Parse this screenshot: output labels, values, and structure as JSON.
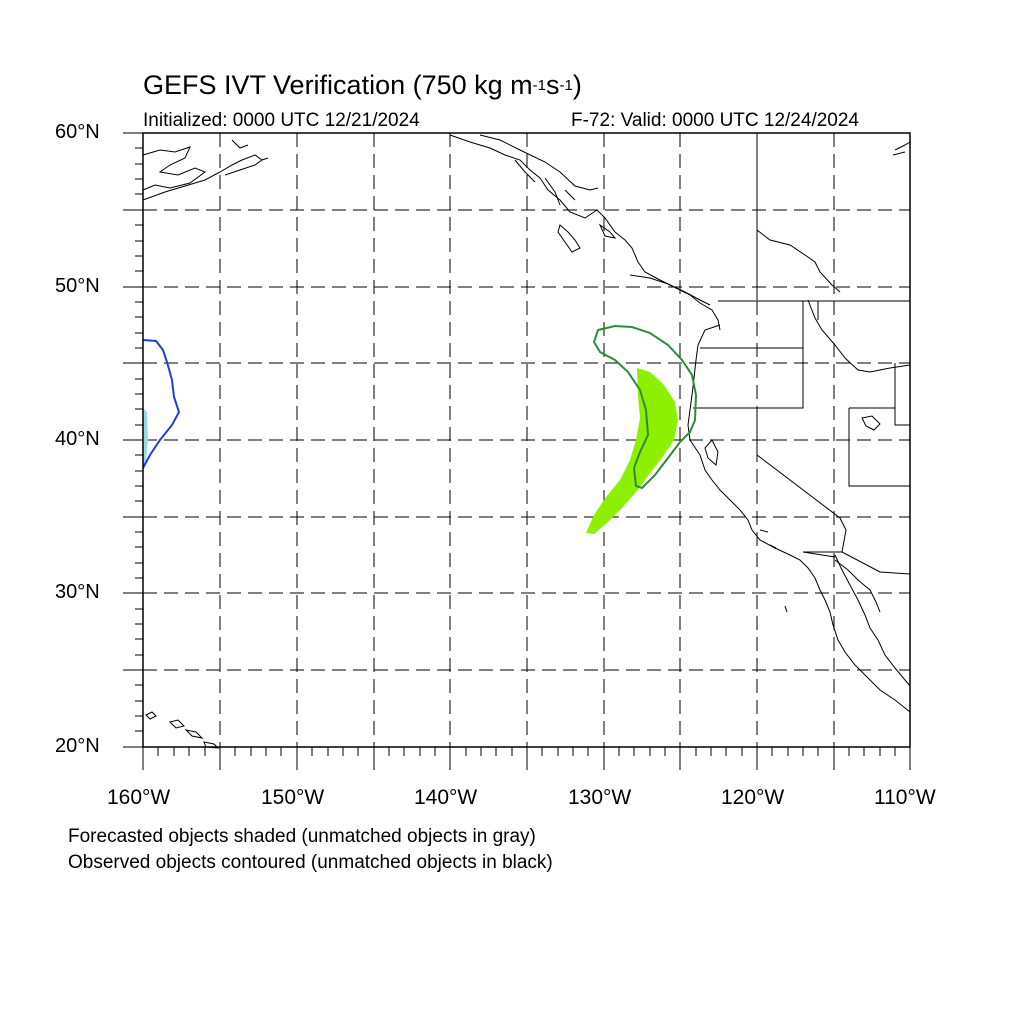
{
  "header": {
    "title_main": "GEFS IVT Verification (750 kg m",
    "title_exp1": "-1",
    "title_mid": "s",
    "title_exp2": "-1",
    "title_end": ")",
    "initialized": "Initialized: 0000 UTC 12/21/2024",
    "valid": "F-72: Valid: 0000 UTC 12/24/2024"
  },
  "axes": {
    "lat_labels": [
      "60°N",
      "50°N",
      "40°N",
      "30°N",
      "20°N"
    ],
    "lon_labels": [
      "160°W",
      "150°W",
      "140°W",
      "130°W",
      "120°W",
      "110°W"
    ],
    "lon_range": [
      -160,
      -110
    ],
    "lat_range": [
      20,
      60
    ],
    "grid": "dashed"
  },
  "legend": {
    "forecast_note": "Forecasted objects shaded (unmatched objects in gray)",
    "observed_note": "Observed objects contoured (unmatched objects in black)"
  },
  "objects": {
    "forecast_colors": [
      "#8cf000",
      "#9ad8ea"
    ],
    "observed_colors": [
      "#2e8b3a",
      "#1f3fd8"
    ]
  }
}
